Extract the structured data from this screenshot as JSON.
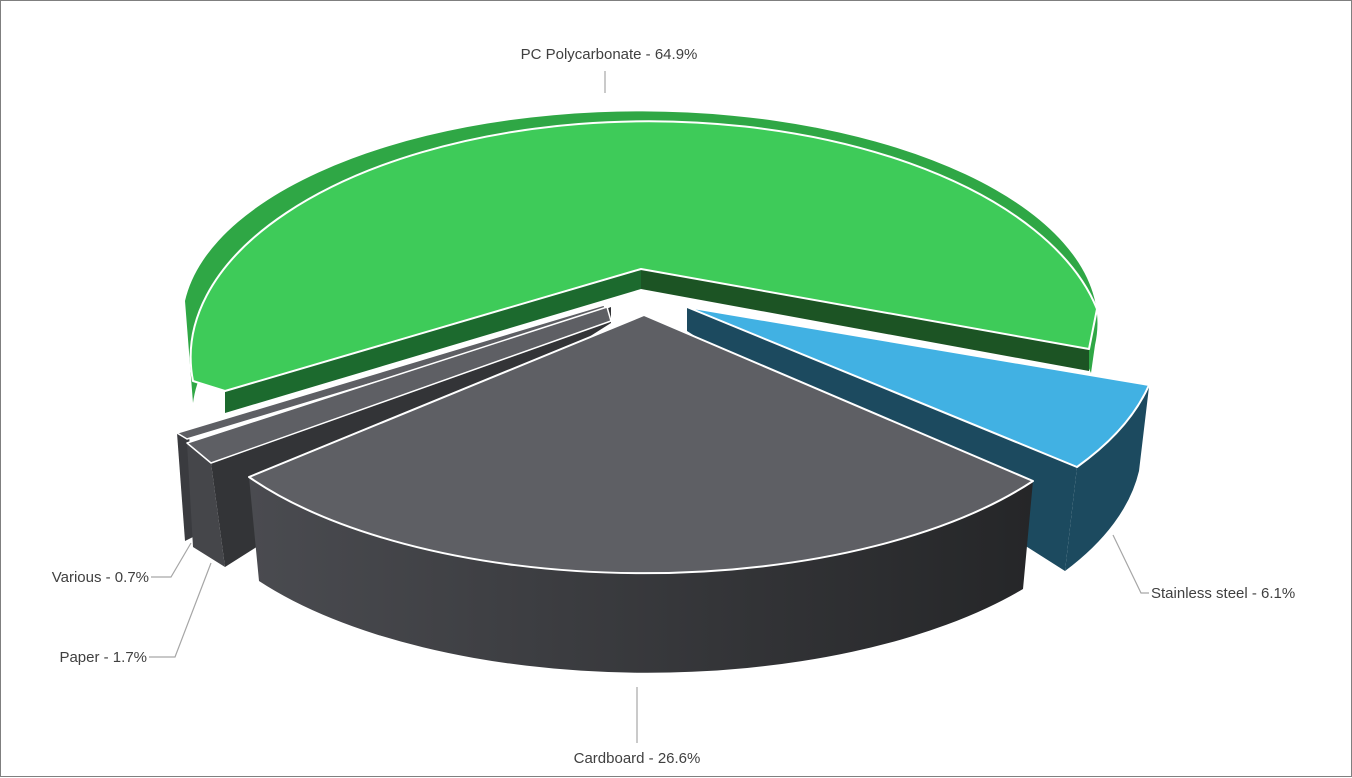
{
  "chart_data": {
    "type": "pie",
    "style": "3d-exploded",
    "title": "",
    "legend": "none",
    "slices": [
      {
        "label": "PC Polycarbonate",
        "value": 64.9,
        "display": "PC Polycarbonate - 64.9%",
        "color_top": "#3ecb59",
        "color_side": "#2fa745",
        "color_wall": "#1c5424"
      },
      {
        "label": "Stainless steel",
        "value": 6.1,
        "display": "Stainless steel - 6.1%",
        "color_top": "#41b1e3",
        "color_side": "#1c4a5f",
        "color_wall": "#1c4a5f"
      },
      {
        "label": "Cardboard",
        "value": 26.6,
        "display": "Cardboard - 26.6%",
        "color_top": "#5e5f64",
        "color_side": "#3a3b3f",
        "color_wall": "#333437"
      },
      {
        "label": "Paper",
        "value": 1.7,
        "display": "Paper - 1.7%",
        "color_top": "#5e5f64",
        "color_side": "#3a3b3f",
        "color_wall": "#333437"
      },
      {
        "label": "Various",
        "value": 0.7,
        "display": "Various - 0.7%",
        "color_top": "#5e5f64",
        "color_side": "#3a3b3f",
        "color_wall": "#333437"
      }
    ]
  }
}
